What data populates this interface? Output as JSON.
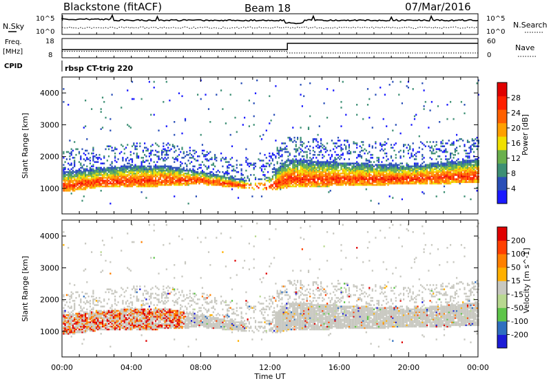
{
  "header": {
    "site": "Blackstone (fitACF)",
    "beam": "Beam 18",
    "date": "07/Mar/2016"
  },
  "noise_panel": {
    "left_label": "N.Sky",
    "right_label": "N.Search",
    "tick_top": "10^5",
    "tick_bottom": "10^0"
  },
  "freq_panel": {
    "left_label_1": "Freq.",
    "left_label_2": "[MHz]",
    "left_ticks": [
      "18",
      "8"
    ],
    "right_label": "Nave",
    "right_ticks": [
      "60",
      "0"
    ],
    "cpid_label": "CPID",
    "program": "rbsp CT-trig 220"
  },
  "colors": {
    "power": [
      "#1a1aff",
      "#2a4fb8",
      "#3d8f74",
      "#6ab04c",
      "#f0e000",
      "#ffa000",
      "#ff6000",
      "#ff2000",
      "#e00000"
    ],
    "velocity": [
      "#1c1cd6",
      "#2f6fc0",
      "#5ec54a",
      "#b8d890",
      "#c8c8c0",
      "#ffb000",
      "#ff8000",
      "#ff4000",
      "#e00000"
    ]
  },
  "chart_data": [
    {
      "type": "heatmap",
      "name": "Power",
      "ylabel": "Slant Range [km]",
      "ylim": [
        200,
        4500
      ],
      "y_ticks": [
        1000,
        2000,
        3000,
        4000
      ],
      "colorbar_label": "Power [dB]",
      "colorbar_ticks": [
        "4",
        "8",
        "12",
        "16",
        "20",
        "24",
        "28"
      ],
      "colorbar_range": [
        0,
        32
      ],
      "band_profile_hours": [
        0,
        2,
        4,
        6,
        8,
        10,
        11,
        12,
        13,
        16,
        20,
        24
      ],
      "band_low_km": [
        850,
        1000,
        1000,
        1050,
        1100,
        1000,
        950,
        900,
        1000,
        1050,
        1100,
        1150
      ],
      "band_high_km": [
        1500,
        1600,
        1700,
        1700,
        1500,
        1300,
        1200,
        1400,
        1900,
        1800,
        1700,
        1900
      ]
    },
    {
      "type": "heatmap",
      "name": "Velocity",
      "ylabel": "Slant Range [km]",
      "ylim": [
        200,
        4500
      ],
      "y_ticks": [
        1000,
        2000,
        3000,
        4000
      ],
      "colorbar_label": "Velocity [m s^-1]",
      "colorbar_ticks": [
        "-200",
        "-100",
        "-50",
        "-15",
        "15",
        "50",
        "100",
        "200"
      ],
      "colorbar_range": [
        -250,
        250
      ]
    }
  ],
  "x_axis": {
    "label": "Time UT",
    "ticks": [
      "00:00",
      "04:00",
      "08:00",
      "12:00",
      "16:00",
      "20:00",
      "00:00"
    ],
    "hours": [
      0,
      4,
      8,
      12,
      16,
      20,
      24
    ]
  },
  "freq_series": {
    "hours": [
      0,
      13,
      13,
      24
    ],
    "freq_mhz": [
      8.5,
      8.5,
      15,
      15
    ]
  }
}
